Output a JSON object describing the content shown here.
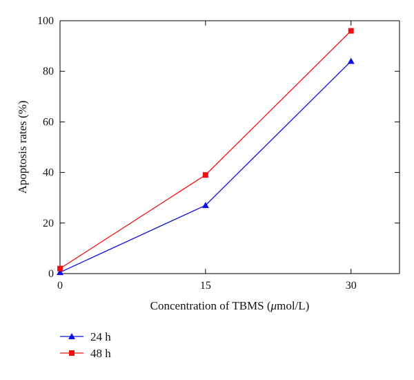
{
  "chart_data": {
    "type": "line",
    "xlabel_prefix": "Concentration of TBMS (",
    "xlabel_mu": "μ",
    "xlabel_suffix": "mol/L)",
    "ylabel": "Apoptosis rates (%)",
    "x": [
      0,
      15,
      30
    ],
    "xlim": [
      0,
      35
    ],
    "ylim": [
      0,
      100
    ],
    "x_ticks": [
      "0",
      "15",
      "30"
    ],
    "y_ticks": [
      "0",
      "20",
      "40",
      "60",
      "80",
      "100"
    ],
    "grid": false,
    "legend_position": "bottom-left",
    "series": [
      {
        "name": "24 h",
        "values": [
          0.5,
          27,
          84
        ],
        "color": "#1010e0",
        "marker": "triangle"
      },
      {
        "name": "48 h",
        "values": [
          2,
          39,
          96
        ],
        "color": "#ee1111",
        "marker": "square"
      }
    ]
  }
}
